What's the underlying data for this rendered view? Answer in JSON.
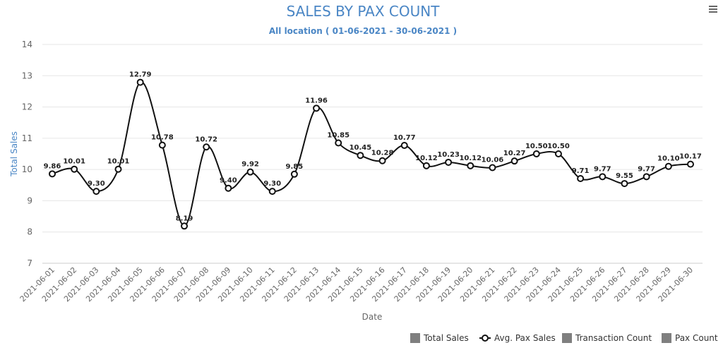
{
  "chart_data": {
    "type": "line",
    "title": "SALES BY PAX COUNT",
    "subtitle": "All location ( 01-06-2021 - 30-06-2021 )",
    "xlabel": "Date",
    "ylabel": "Total Sales",
    "ylim": [
      7,
      14
    ],
    "yticks": [
      "7",
      "8",
      "9",
      "10",
      "11",
      "12",
      "13",
      "14"
    ],
    "grid": true,
    "legend_position": "bottom-right",
    "categories": [
      "2021-06-01",
      "2021-06-02",
      "2021-06-03",
      "2021-06-04",
      "2021-06-05",
      "2021-06-06",
      "2021-06-07",
      "2021-06-08",
      "2021-06-09",
      "2021-06-10",
      "2021-06-11",
      "2021-06-12",
      "2021-06-13",
      "2021-06-14",
      "2021-06-15",
      "2021-06-16",
      "2021-06-17",
      "2021-06-18",
      "2021-06-19",
      "2021-06-20",
      "2021-06-21",
      "2021-06-22",
      "2021-06-23",
      "2021-06-24",
      "2021-06-25",
      "2021-06-26",
      "2021-06-27",
      "2021-06-28",
      "2021-06-29",
      "2021-06-30"
    ],
    "series": [
      {
        "name": "Avg. Pax Sales",
        "values": [
          9.86,
          10.01,
          9.3,
          10.01,
          12.79,
          10.78,
          8.19,
          10.72,
          9.4,
          9.92,
          9.3,
          9.85,
          11.96,
          10.85,
          10.45,
          10.28,
          10.77,
          10.12,
          10.23,
          10.12,
          10.06,
          10.27,
          10.5,
          10.5,
          9.71,
          9.77,
          9.55,
          9.77,
          10.1,
          10.17
        ],
        "labels": [
          "9.86",
          "10.01",
          "9.30",
          "10.01",
          "12.79",
          "10.78",
          "8.19",
          "10.72",
          "9.40",
          "9.92",
          "9.30",
          "9.85",
          "11.96",
          "10.85",
          "10.45",
          "10.28",
          "10.77",
          "10.12",
          "10.23",
          "10.12",
          "10.06",
          "10.27",
          "10.50",
          "10.50",
          "9.71",
          "9.77",
          "9.55",
          "9.77",
          "10.10",
          "10.17"
        ]
      }
    ],
    "legend": [
      {
        "name": "Total Sales",
        "symbol": "square"
      },
      {
        "name": "Avg. Pax Sales",
        "symbol": "line-circle"
      },
      {
        "name": "Transaction Count",
        "symbol": "square"
      },
      {
        "name": "Pax Count",
        "symbol": "square"
      }
    ]
  },
  "menu": {
    "icon": "hamburger-menu-icon"
  },
  "colors": {
    "title": "#4a86c5",
    "line": "#111111",
    "grid": "#e6e6e6",
    "axis_text": "#666666",
    "legend_square": "#7f7f7f",
    "legend_text": "#333333"
  }
}
